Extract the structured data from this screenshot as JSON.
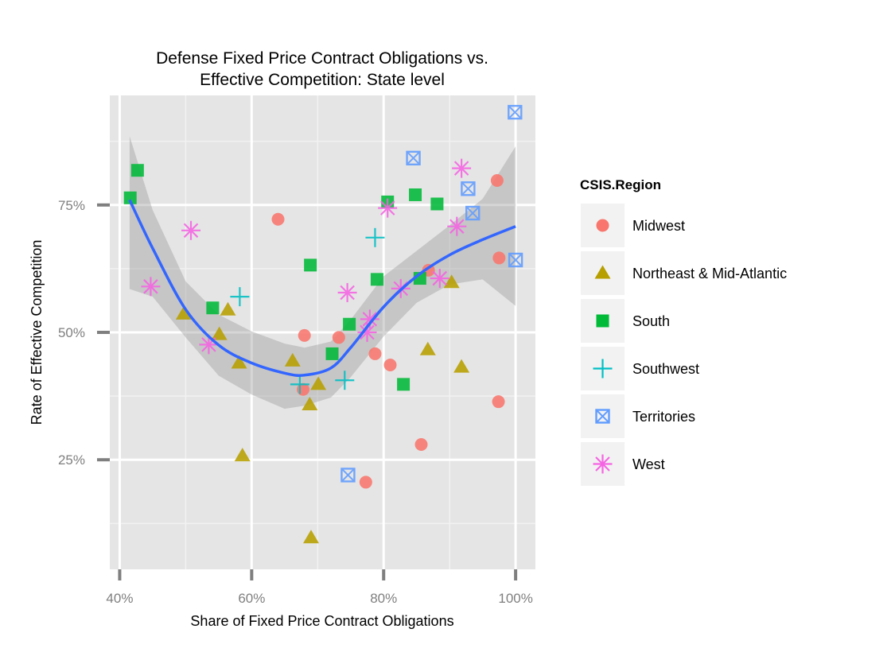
{
  "chart_data": {
    "type": "scatter",
    "title": [
      "Defense Fixed Price Contract Obligations vs.",
      "Effective Competition: State level"
    ],
    "xlabel": "Share of Fixed Price Contract Obligations",
    "ylabel": "Rate of Effective Competition",
    "xlim": [
      0.385,
      1.03
    ],
    "ylim": [
      0.035,
      0.965
    ],
    "x_ticks": [
      0.4,
      0.6,
      0.8,
      1.0
    ],
    "x_tick_labels": [
      "40%",
      "60%",
      "80%",
      "100%"
    ],
    "y_ticks": [
      0.25,
      0.5,
      0.75
    ],
    "y_tick_labels": [
      "25%",
      "50%",
      "75%"
    ],
    "grid": true,
    "legend": {
      "title": "CSIS.Region",
      "position": "right"
    },
    "series": [
      {
        "name": "Midwest",
        "shape": "circle",
        "color": "#F8766D",
        "points": [
          [
            0.64,
            0.722
          ],
          [
            0.68,
            0.494
          ],
          [
            0.678,
            0.388
          ],
          [
            0.732,
            0.49
          ],
          [
            0.787,
            0.458
          ],
          [
            0.81,
            0.436
          ],
          [
            0.857,
            0.28
          ],
          [
            0.773,
            0.206
          ],
          [
            0.868,
            0.622
          ],
          [
            0.972,
            0.798
          ],
          [
            0.975,
            0.646
          ],
          [
            0.974,
            0.364
          ]
        ]
      },
      {
        "name": "Northeast & Mid-Atlantic",
        "shape": "triangle",
        "color": "#B79F00",
        "points": [
          [
            0.497,
            0.536
          ],
          [
            0.564,
            0.544
          ],
          [
            0.551,
            0.496
          ],
          [
            0.581,
            0.44
          ],
          [
            0.586,
            0.258
          ],
          [
            0.662,
            0.444
          ],
          [
            0.701,
            0.398
          ],
          [
            0.688,
            0.358
          ],
          [
            0.69,
            0.097
          ],
          [
            0.867,
            0.466
          ],
          [
            0.903,
            0.598
          ],
          [
            0.918,
            0.432
          ]
        ]
      },
      {
        "name": "South",
        "shape": "square",
        "color": "#00BA38",
        "points": [
          [
            0.416,
            0.764
          ],
          [
            0.427,
            0.818
          ],
          [
            0.541,
            0.548
          ],
          [
            0.689,
            0.632
          ],
          [
            0.722,
            0.458
          ],
          [
            0.748,
            0.516
          ],
          [
            0.79,
            0.604
          ],
          [
            0.806,
            0.756
          ],
          [
            0.83,
            0.398
          ],
          [
            0.848,
            0.77
          ],
          [
            0.855,
            0.606
          ],
          [
            0.881,
            0.752
          ]
        ]
      },
      {
        "name": "Southwest",
        "shape": "plus",
        "color": "#00BFC4",
        "points": [
          [
            0.582,
            0.57
          ],
          [
            0.673,
            0.398
          ],
          [
            0.741,
            0.406
          ],
          [
            0.787,
            0.686
          ]
        ]
      },
      {
        "name": "Territories",
        "shape": "boxx",
        "color": "#619CFF",
        "points": [
          [
            0.746,
            0.22
          ],
          [
            0.845,
            0.842
          ],
          [
            0.928,
            0.782
          ],
          [
            0.935,
            0.734
          ],
          [
            0.999,
            0.932
          ],
          [
            1.0,
            0.642
          ]
        ]
      },
      {
        "name": "West",
        "shape": "star",
        "color": "#F564E3",
        "points": [
          [
            0.447,
            0.59
          ],
          [
            0.508,
            0.7
          ],
          [
            0.535,
            0.476
          ],
          [
            0.745,
            0.578
          ],
          [
            0.775,
            0.5
          ],
          [
            0.779,
            0.526
          ],
          [
            0.806,
            0.744
          ],
          [
            0.826,
            0.586
          ],
          [
            0.885,
            0.606
          ],
          [
            0.911,
            0.708
          ],
          [
            0.918,
            0.822
          ]
        ]
      }
    ],
    "smooth_line": [
      [
        0.415,
        0.76
      ],
      [
        0.45,
        0.665
      ],
      [
        0.5,
        0.545
      ],
      [
        0.55,
        0.475
      ],
      [
        0.6,
        0.44
      ],
      [
        0.65,
        0.42
      ],
      [
        0.68,
        0.416
      ],
      [
        0.72,
        0.43
      ],
      [
        0.75,
        0.47
      ],
      [
        0.8,
        0.55
      ],
      [
        0.85,
        0.61
      ],
      [
        0.9,
        0.652
      ],
      [
        0.95,
        0.682
      ],
      [
        1.0,
        0.708
      ]
    ],
    "smooth_band_upper": [
      [
        0.415,
        0.885
      ],
      [
        0.45,
        0.74
      ],
      [
        0.5,
        0.6
      ],
      [
        0.55,
        0.535
      ],
      [
        0.6,
        0.502
      ],
      [
        0.65,
        0.478
      ],
      [
        0.68,
        0.47
      ],
      [
        0.72,
        0.482
      ],
      [
        0.75,
        0.525
      ],
      [
        0.8,
        0.61
      ],
      [
        0.85,
        0.66
      ],
      [
        0.9,
        0.71
      ],
      [
        0.95,
        0.762
      ],
      [
        1.0,
        0.865
      ]
    ],
    "smooth_band_lower": [
      [
        0.415,
        0.585
      ],
      [
        0.45,
        0.57
      ],
      [
        0.5,
        0.49
      ],
      [
        0.55,
        0.415
      ],
      [
        0.6,
        0.378
      ],
      [
        0.65,
        0.35
      ],
      [
        0.68,
        0.356
      ],
      [
        0.72,
        0.372
      ],
      [
        0.75,
        0.412
      ],
      [
        0.8,
        0.492
      ],
      [
        0.85,
        0.558
      ],
      [
        0.9,
        0.594
      ],
      [
        0.95,
        0.604
      ],
      [
        1.0,
        0.552
      ]
    ],
    "smooth_color": "#3366FF",
    "band_color": "#999999"
  }
}
